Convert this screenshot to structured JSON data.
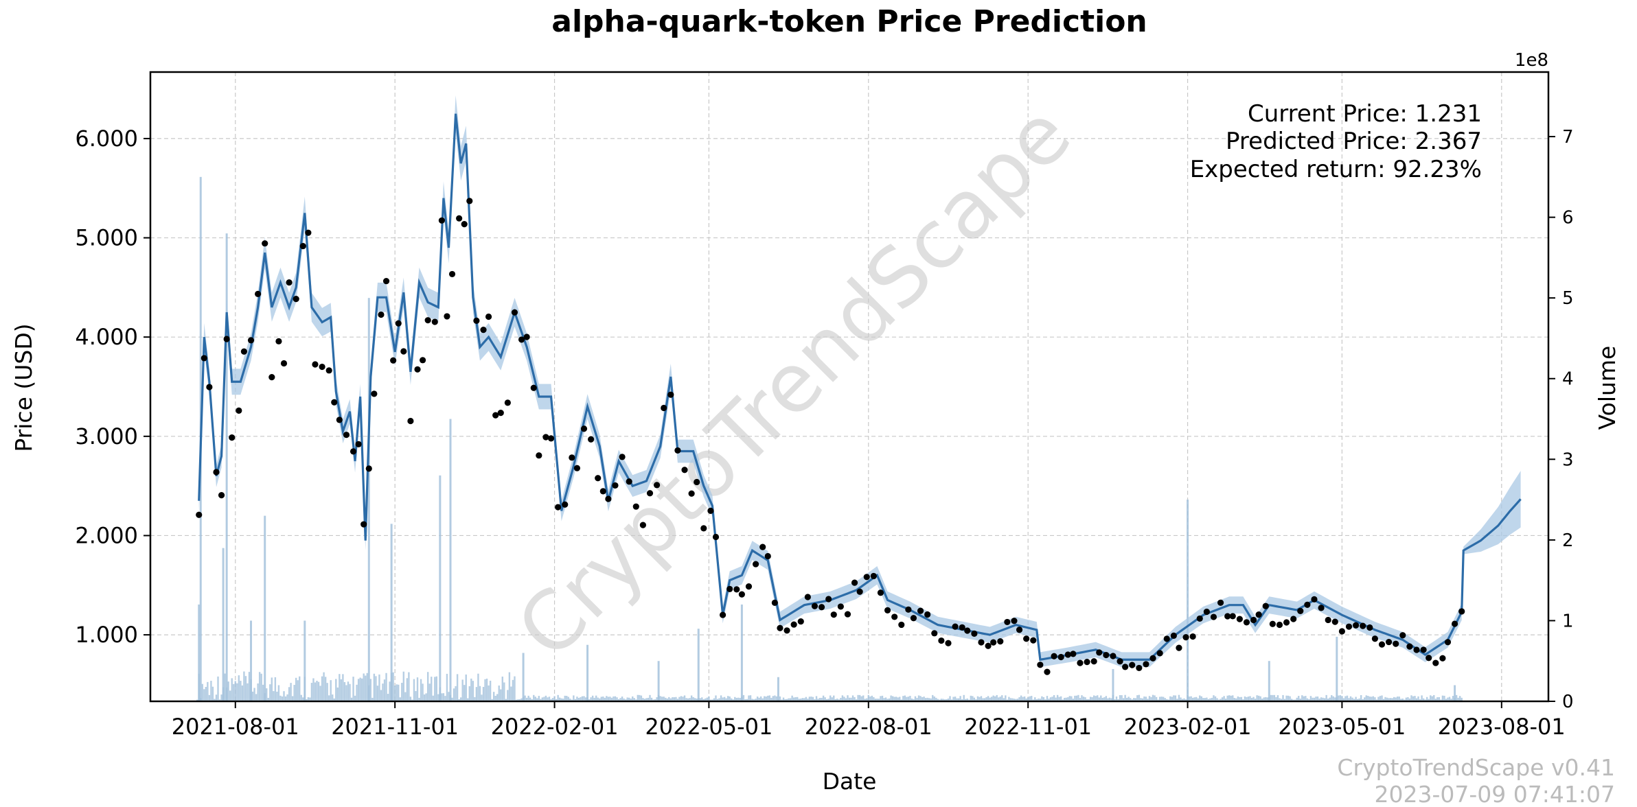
{
  "chart_data": {
    "type": "line",
    "title": "alpha-quark-token Price Prediction",
    "xlabel": "Date",
    "ylabel": "Price (USD)",
    "ylabel_right": "Volume",
    "volume_scale_label": "1e8",
    "x_ticks": [
      "2021-08-01",
      "2021-11-01",
      "2022-02-01",
      "2022-05-01",
      "2022-08-01",
      "2022-11-01",
      "2023-02-01",
      "2023-05-01",
      "2023-08-01"
    ],
    "y_ticks": [
      "1.000",
      "2.000",
      "3.000",
      "4.000",
      "5.000",
      "6.000"
    ],
    "y_ticks_right": [
      "0",
      "1",
      "2",
      "3",
      "4",
      "5",
      "6",
      "7"
    ],
    "ylim": [
      0.33,
      6.67
    ],
    "ylim_right": [
      0,
      7.8
    ],
    "grid": true,
    "series": [
      {
        "name": "Price",
        "style": "line with black dots and confidence band",
        "points": [
          [
            "2021-07-11",
            2.35
          ],
          [
            "2021-07-14",
            4.0
          ],
          [
            "2021-07-17",
            3.55
          ],
          [
            "2021-07-21",
            2.6
          ],
          [
            "2021-07-24",
            2.8
          ],
          [
            "2021-07-27",
            4.25
          ],
          [
            "2021-07-30",
            3.55
          ],
          [
            "2021-08-04",
            3.55
          ],
          [
            "2021-08-10",
            3.9
          ],
          [
            "2021-08-14",
            4.3
          ],
          [
            "2021-08-18",
            4.85
          ],
          [
            "2021-08-22",
            4.3
          ],
          [
            "2021-08-27",
            4.55
          ],
          [
            "2021-09-01",
            4.3
          ],
          [
            "2021-09-05",
            4.5
          ],
          [
            "2021-09-10",
            5.25
          ],
          [
            "2021-09-14",
            4.3
          ],
          [
            "2021-09-20",
            4.15
          ],
          [
            "2021-09-25",
            4.2
          ],
          [
            "2021-09-28",
            3.45
          ],
          [
            "2021-10-02",
            3.05
          ],
          [
            "2021-10-06",
            3.25
          ],
          [
            "2021-10-09",
            2.75
          ],
          [
            "2021-10-12",
            3.4
          ],
          [
            "2021-10-15",
            1.95
          ],
          [
            "2021-10-18",
            3.6
          ],
          [
            "2021-10-22",
            4.4
          ],
          [
            "2021-10-27",
            4.4
          ],
          [
            "2021-11-01",
            3.85
          ],
          [
            "2021-11-06",
            4.45
          ],
          [
            "2021-11-10",
            3.65
          ],
          [
            "2021-11-15",
            4.55
          ],
          [
            "2021-11-20",
            4.35
          ],
          [
            "2021-11-26",
            4.3
          ],
          [
            "2021-11-29",
            5.4
          ],
          [
            "2021-12-02",
            4.9
          ],
          [
            "2021-12-06",
            6.25
          ],
          [
            "2021-12-09",
            5.75
          ],
          [
            "2021-12-12",
            5.95
          ],
          [
            "2021-12-16",
            4.4
          ],
          [
            "2021-12-20",
            3.9
          ],
          [
            "2021-12-25",
            4.0
          ],
          [
            "2022-01-01",
            3.8
          ],
          [
            "2022-01-09",
            4.25
          ],
          [
            "2022-01-16",
            3.9
          ],
          [
            "2022-01-23",
            3.4
          ],
          [
            "2022-01-30",
            3.4
          ],
          [
            "2022-02-05",
            2.25
          ],
          [
            "2022-02-12",
            2.7
          ],
          [
            "2022-02-20",
            3.3
          ],
          [
            "2022-02-27",
            2.9
          ],
          [
            "2022-03-04",
            2.35
          ],
          [
            "2022-03-10",
            2.75
          ],
          [
            "2022-03-18",
            2.5
          ],
          [
            "2022-03-26",
            2.55
          ],
          [
            "2022-04-03",
            2.9
          ],
          [
            "2022-04-09",
            3.6
          ],
          [
            "2022-04-13",
            2.85
          ],
          [
            "2022-04-22",
            2.85
          ],
          [
            "2022-04-28",
            2.5
          ],
          [
            "2022-05-03",
            2.3
          ],
          [
            "2022-05-09",
            1.2
          ],
          [
            "2022-05-13",
            1.55
          ],
          [
            "2022-05-20",
            1.6
          ],
          [
            "2022-05-26",
            1.85
          ],
          [
            "2022-06-04",
            1.75
          ],
          [
            "2022-06-11",
            1.15
          ],
          [
            "2022-06-25",
            1.3
          ],
          [
            "2022-07-10",
            1.35
          ],
          [
            "2022-07-25",
            1.45
          ],
          [
            "2022-08-06",
            1.6
          ],
          [
            "2022-08-12",
            1.35
          ],
          [
            "2022-08-25",
            1.25
          ],
          [
            "2022-09-10",
            1.1
          ],
          [
            "2022-09-25",
            1.05
          ],
          [
            "2022-10-10",
            1.0
          ],
          [
            "2022-10-25",
            1.1
          ],
          [
            "2022-11-06",
            1.05
          ],
          [
            "2022-11-08",
            0.75
          ],
          [
            "2022-11-25",
            0.8
          ],
          [
            "2022-12-10",
            0.85
          ],
          [
            "2022-12-25",
            0.75
          ],
          [
            "2023-01-10",
            0.75
          ],
          [
            "2023-01-25",
            1.0
          ],
          [
            "2023-02-10",
            1.2
          ],
          [
            "2023-02-25",
            1.3
          ],
          [
            "2023-03-05",
            1.3
          ],
          [
            "2023-03-12",
            1.1
          ],
          [
            "2023-03-20",
            1.3
          ],
          [
            "2023-04-05",
            1.25
          ],
          [
            "2023-04-15",
            1.35
          ],
          [
            "2023-05-01",
            1.2
          ],
          [
            "2023-05-20",
            1.05
          ],
          [
            "2023-06-05",
            0.95
          ],
          [
            "2023-06-18",
            0.8
          ],
          [
            "2023-07-01",
            0.95
          ],
          [
            "2023-07-09",
            1.231
          ]
        ]
      },
      {
        "name": "Prediction",
        "style": "line with confidence band",
        "points": [
          [
            "2023-07-09",
            1.231
          ],
          [
            "2023-07-10",
            1.85
          ],
          [
            "2023-07-20",
            1.95
          ],
          [
            "2023-07-30",
            2.1
          ],
          [
            "2023-08-06",
            2.25
          ],
          [
            "2023-08-12",
            2.367
          ]
        ]
      },
      {
        "name": "Volume",
        "axis": "right",
        "unit": "1e8",
        "bars": [
          [
            "2021-07-12",
            6.5
          ],
          [
            "2021-07-11",
            1.2
          ],
          [
            "2021-07-25",
            1.9
          ],
          [
            "2021-07-27",
            5.8
          ],
          [
            "2021-08-10",
            1.0
          ],
          [
            "2021-08-18",
            2.3
          ],
          [
            "2021-09-10",
            1.0
          ],
          [
            "2021-10-17",
            5.0
          ],
          [
            "2021-10-30",
            2.2
          ],
          [
            "2021-11-27",
            2.8
          ],
          [
            "2021-12-03",
            3.5
          ],
          [
            "2022-01-14",
            0.6
          ],
          [
            "2022-02-20",
            0.7
          ],
          [
            "2022-04-02",
            0.5
          ],
          [
            "2022-04-25",
            0.9
          ],
          [
            "2022-05-20",
            1.2
          ],
          [
            "2022-06-10",
            0.3
          ],
          [
            "2022-12-20",
            0.4
          ],
          [
            "2023-02-01",
            2.5
          ],
          [
            "2023-03-20",
            0.5
          ],
          [
            "2023-04-28",
            0.8
          ],
          [
            "2023-07-05",
            0.2
          ]
        ]
      }
    ],
    "annotations": [
      "Current Price: 1.231",
      "Predicted Price: 2.367",
      "Expected return: 92.23%"
    ],
    "watermark": "CryptoTrendScape",
    "footer": [
      "CryptoTrendScape v0.41",
      "2023-07-09 07:41:07"
    ]
  },
  "colors": {
    "line": "#2c6ca8",
    "band": "#aac8e4",
    "volume": "#a4c2dc",
    "dots": "#000000",
    "grid": "#c8c8c8"
  }
}
